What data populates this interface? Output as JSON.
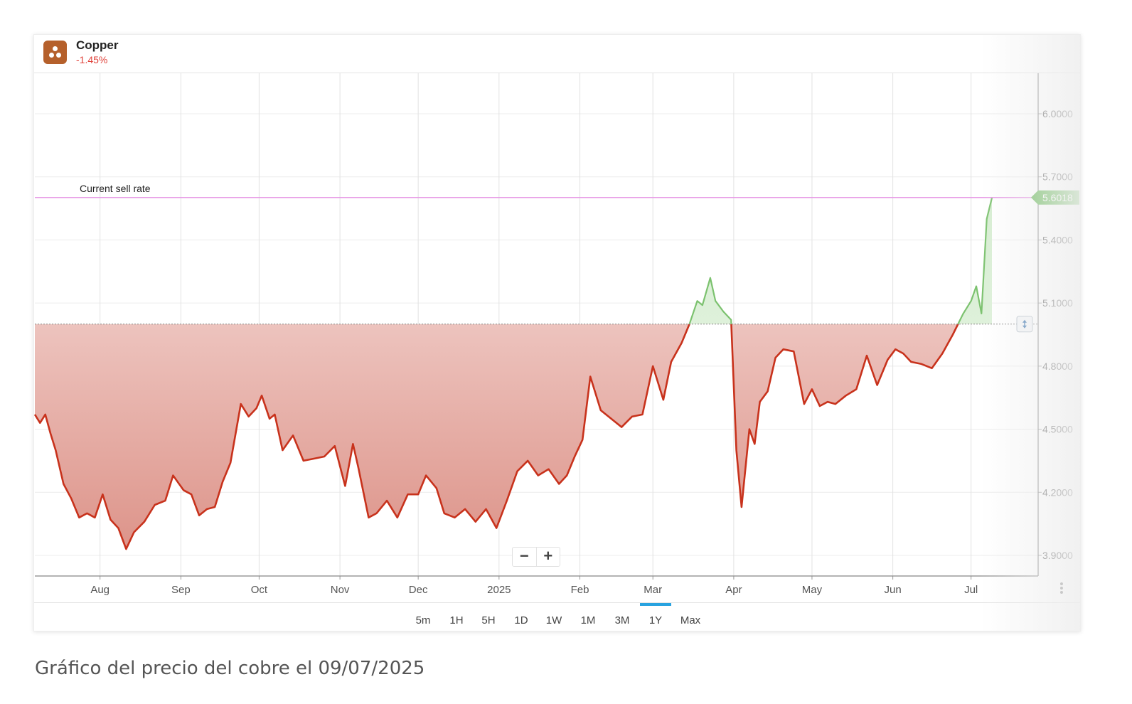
{
  "header": {
    "name": "Copper",
    "change": "-1.45%"
  },
  "timeframes": [
    "5m",
    "1H",
    "5H",
    "1D",
    "1W",
    "1M",
    "3M",
    "1Y",
    "Max"
  ],
  "selected_timeframe": "1Y",
  "zoom_controls": {
    "minus": "−",
    "plus": "+"
  },
  "caption": "Gráfico del precio del cobre el 09/07/2025",
  "colors": {
    "down_line": "#c8321c",
    "up_line": "#7cc26f",
    "sell_rate_line": "#e79be6",
    "sell_rate_badge": "#6dbb5e",
    "accent": "#29a3e0"
  },
  "chart_data": {
    "type": "area",
    "x_tick_labels": [
      "Aug",
      "Sep",
      "Oct",
      "Nov",
      "Dec",
      "2025",
      "Feb",
      "Mar",
      "Apr",
      "May",
      "Jun",
      "Jul"
    ],
    "y_ticks": [
      "6.0000",
      "5.7000",
      "5.4000",
      "5.1000",
      "4.8000",
      "4.5000",
      "4.2000",
      "3.9000"
    ],
    "ylim": [
      3.8,
      6.2
    ],
    "grid": true,
    "baseline": 5.0,
    "current_sell_rate": {
      "label": "Current sell rate",
      "value": 5.6018,
      "display": "5.6018"
    },
    "series": [
      {
        "x_dates": [
          "2024-07-07",
          "2024-07-09",
          "2024-07-11",
          "2024-07-13",
          "2024-07-15",
          "2024-07-18",
          "2024-07-21",
          "2024-07-24",
          "2024-07-27",
          "2024-07-30",
          "2024-08-02",
          "2024-08-05",
          "2024-08-08",
          "2024-08-11",
          "2024-08-14",
          "2024-08-18",
          "2024-08-22",
          "2024-08-26",
          "2024-08-29",
          "2024-09-02",
          "2024-09-05",
          "2024-09-08",
          "2024-09-11",
          "2024-09-14",
          "2024-09-17",
          "2024-09-20",
          "2024-09-24",
          "2024-09-27",
          "2024-09-30",
          "2024-10-02",
          "2024-10-05",
          "2024-10-07",
          "2024-10-10",
          "2024-10-14",
          "2024-10-18",
          "2024-10-22",
          "2024-10-26",
          "2024-10-30",
          "2024-11-03",
          "2024-11-06",
          "2024-11-08",
          "2024-11-12",
          "2024-11-15",
          "2024-11-19",
          "2024-11-23",
          "2024-11-27",
          "2024-12-01",
          "2024-12-04",
          "2024-12-08",
          "2024-12-11",
          "2024-12-15",
          "2024-12-19",
          "2024-12-23",
          "2024-12-27",
          "2024-12-31",
          "2025-01-04",
          "2025-01-08",
          "2025-01-12",
          "2025-01-16",
          "2025-01-20",
          "2025-01-24",
          "2025-01-27",
          "2025-01-30",
          "2025-02-02",
          "2025-02-05",
          "2025-02-09",
          "2025-02-13",
          "2025-02-17",
          "2025-02-21",
          "2025-02-25",
          "2025-03-01",
          "2025-03-05",
          "2025-03-08",
          "2025-03-12",
          "2025-03-15",
          "2025-03-18",
          "2025-03-20",
          "2025-03-23",
          "2025-03-25",
          "2025-03-28",
          "2025-03-31",
          "2025-04-02",
          "2025-04-04",
          "2025-04-07",
          "2025-04-09",
          "2025-04-11",
          "2025-04-14",
          "2025-04-17",
          "2025-04-20",
          "2025-04-24",
          "2025-04-28",
          "2025-05-01",
          "2025-05-04",
          "2025-05-07",
          "2025-05-10",
          "2025-05-14",
          "2025-05-18",
          "2025-05-22",
          "2025-05-26",
          "2025-05-30",
          "2025-06-02",
          "2025-06-05",
          "2025-06-08",
          "2025-06-12",
          "2025-06-16",
          "2025-06-20",
          "2025-06-24",
          "2025-06-28",
          "2025-07-01",
          "2025-07-03",
          "2025-07-05",
          "2025-07-07",
          "2025-07-08",
          "2025-07-09"
        ],
        "y": [
          4.57,
          4.53,
          4.57,
          4.48,
          4.4,
          4.24,
          4.17,
          4.08,
          4.1,
          4.08,
          4.19,
          4.07,
          4.03,
          3.93,
          4.01,
          4.06,
          4.14,
          4.16,
          4.28,
          4.21,
          4.19,
          4.09,
          4.12,
          4.13,
          4.25,
          4.34,
          4.62,
          4.56,
          4.6,
          4.66,
          4.55,
          4.57,
          4.4,
          4.47,
          4.35,
          4.36,
          4.37,
          4.42,
          4.23,
          4.43,
          4.32,
          4.08,
          4.1,
          4.16,
          4.08,
          4.19,
          4.19,
          4.28,
          4.22,
          4.1,
          4.08,
          4.12,
          4.06,
          4.12,
          4.03,
          4.16,
          4.3,
          4.35,
          4.28,
          4.31,
          4.24,
          4.28,
          4.37,
          4.45,
          4.75,
          4.59,
          4.55,
          4.51,
          4.56,
          4.57,
          4.8,
          4.64,
          4.82,
          4.91,
          5.0,
          5.11,
          5.09,
          5.22,
          5.11,
          5.06,
          5.02,
          4.4,
          4.13,
          4.5,
          4.43,
          4.63,
          4.68,
          4.84,
          4.88,
          4.87,
          4.62,
          4.69,
          4.61,
          4.63,
          4.62,
          4.66,
          4.69,
          4.85,
          4.71,
          4.83,
          4.88,
          4.86,
          4.82,
          4.81,
          4.79,
          4.86,
          4.95,
          5.05,
          5.11,
          5.18,
          5.05,
          5.5,
          5.55,
          5.6
        ]
      }
    ]
  }
}
